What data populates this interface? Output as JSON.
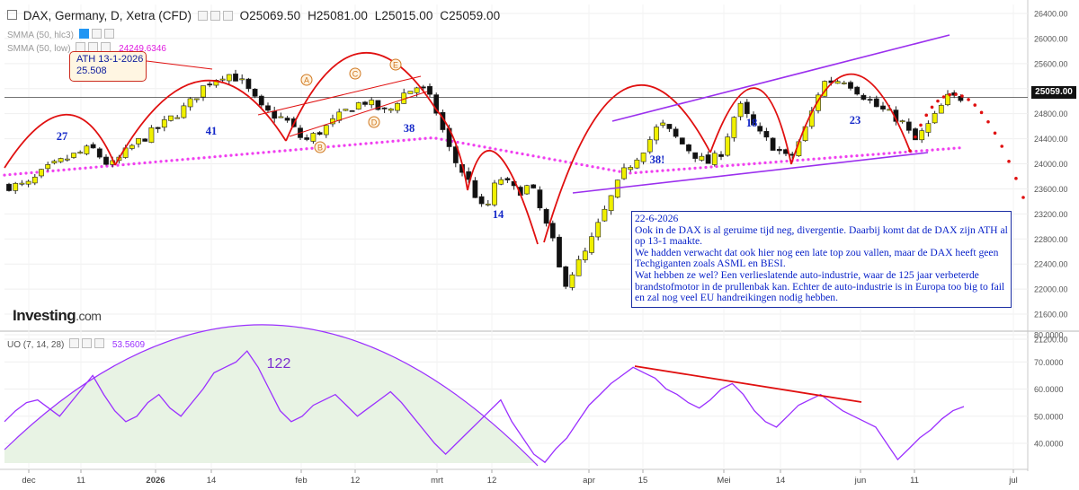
{
  "header": {
    "symbol": "DAX, Germany, D, Xetra (CFD)",
    "open": "O25069.50",
    "high": "H25081.00",
    "low": "L25015.00",
    "close": "C25059.00"
  },
  "indicators": {
    "sma1_label": "SMMA (50, hlc3)",
    "sma2_label": "SMMA (50, low)",
    "sma2_value": "24249.6346",
    "uo_label": "UO (7, 14, 28)",
    "uo_value": "53.5609"
  },
  "colors": {
    "bull_candle": "#f0f000",
    "bear_candle": "#111111",
    "arc": "#e01010",
    "channel": "#9b30ee",
    "smma": "#f040f0",
    "oscillator": "#9b30ff",
    "wave_labels": "#1428c8",
    "pattern_labels": "#d07820"
  },
  "annotations": {
    "ath_box_line1": "ATH 13-1-2026",
    "ath_box_line2": "25.508",
    "wave_27": "27",
    "wave_41": "41",
    "wave_38": "38",
    "wave_14": "14",
    "wave_38b": "38!",
    "wave_18": "18",
    "wave_23": "23",
    "uo_122": "122",
    "pat_A": "A",
    "pat_B": "B",
    "pat_C": "C",
    "pat_D": "D",
    "pat_E": "E",
    "comment": "22-6-2026\nOok in de DAX is al geruime tijd neg, divergentie. Daarbij komt dat de DAX zijn ATH  al op 13-1 maakte.\nWe hadden verwacht dat ook hier nog een late top zou vallen, maar de DAX heeft geen Techgiganten zoals ASML en BESI.\nWat hebben ze wel? Een verlieslatende  auto-industrie, waar de 125 jaar verbeterde brandstofmotor in de prullenbak kan. Echter de auto-industrie is in Europa too big to fail en zal nog  veel EU handreikingen nodig hebben.",
    "logo_main": "Investing",
    "logo_suffix": ".com"
  },
  "chart_data": [
    {
      "type": "candlestick",
      "title": "DAX, Germany, D, Xetra (CFD)",
      "ylim": [
        21200,
        26400
      ],
      "y_ticks": [
        "26400.00",
        "26000.00",
        "25600.00",
        "25200.00",
        "24800.00",
        "24400.00",
        "24000.00",
        "23600.00",
        "23200.00",
        "22800.00",
        "22400.00",
        "22000.00",
        "21600.00",
        "21200.00"
      ],
      "last_price": "25059.00",
      "x_ticks": [
        "dec",
        "11",
        "2026",
        "14",
        "feb",
        "12",
        "mrt",
        "12",
        "apr",
        "15",
        "Mei",
        "14",
        "jun",
        "11",
        "jul"
      ],
      "close_path": [
        [
          "2025-12-01",
          23650
        ],
        [
          "2025-12-05",
          23900
        ],
        [
          "2025-12-10",
          24100
        ],
        [
          "2025-12-15",
          24250
        ],
        [
          "2025-12-19",
          23950
        ],
        [
          "2025-12-24",
          24300
        ],
        [
          "2025-12-30",
          24600
        ],
        [
          "2026-01-05",
          24950
        ],
        [
          "2026-01-09",
          25300
        ],
        [
          "2026-01-13",
          25450
        ],
        [
          "2026-01-16",
          25350
        ],
        [
          "2026-01-21",
          24850
        ],
        [
          "2026-01-26",
          24700
        ],
        [
          "2026-01-30",
          24350
        ],
        [
          "2026-02-04",
          24600
        ],
        [
          "2026-02-09",
          24900
        ],
        [
          "2026-02-12",
          25000
        ],
        [
          "2026-02-17",
          24800
        ],
        [
          "2026-02-20",
          25100
        ],
        [
          "2026-02-24",
          25250
        ],
        [
          "2026-02-27",
          24950
        ],
        [
          "2026-03-03",
          24100
        ],
        [
          "2026-03-06",
          23800
        ],
        [
          "2026-03-10",
          23200
        ],
        [
          "2026-03-13",
          23800
        ],
        [
          "2026-03-17",
          23550
        ],
        [
          "2026-03-20",
          23650
        ],
        [
          "2026-03-25",
          22700
        ],
        [
          "2026-03-27",
          22050
        ],
        [
          "2026-04-01",
          22600
        ],
        [
          "2026-04-06",
          23400
        ],
        [
          "2026-04-09",
          23850
        ],
        [
          "2026-04-14",
          24300
        ],
        [
          "2026-04-17",
          24650
        ],
        [
          "2026-04-22",
          24300
        ],
        [
          "2026-04-27",
          24000
        ],
        [
          "2026-04-30",
          24150
        ],
        [
          "2026-05-04",
          24950
        ],
        [
          "2026-05-08",
          24500
        ],
        [
          "2026-05-12",
          24250
        ],
        [
          "2026-05-15",
          24050
        ],
        [
          "2026-05-19",
          24650
        ],
        [
          "2026-05-22",
          25300
        ],
        [
          "2026-05-27",
          25350
        ],
        [
          "2026-05-30",
          25150
        ],
        [
          "2026-06-03",
          24900
        ],
        [
          "2026-06-08",
          24700
        ],
        [
          "2026-06-11",
          24350
        ],
        [
          "2026-06-15",
          24700
        ],
        [
          "2026-06-18",
          25050
        ],
        [
          "2026-06-22",
          25059
        ]
      ]
    },
    {
      "type": "line",
      "title": "UO (7, 14, 28)",
      "ylim": [
        30,
        80
      ],
      "y_ticks": [
        "80.0000",
        "70.0000",
        "60.0000",
        "50.0000",
        "40.0000"
      ],
      "last_value": "53.5609",
      "values": [
        48,
        52,
        55,
        56,
        53,
        50,
        55,
        60,
        65,
        58,
        52,
        48,
        50,
        55,
        58,
        53,
        50,
        55,
        60,
        66,
        68,
        70,
        74,
        68,
        60,
        52,
        48,
        50,
        54,
        56,
        58,
        54,
        50,
        53,
        56,
        59,
        55,
        50,
        45,
        40,
        36,
        40,
        44,
        48,
        52,
        56,
        48,
        42,
        36,
        33,
        38,
        42,
        48,
        54,
        58,
        62,
        65,
        68,
        66,
        64,
        60,
        58,
        55,
        53,
        56,
        60,
        62,
        58,
        52,
        48,
        46,
        50,
        54,
        56,
        58,
        55,
        52,
        50,
        48,
        46,
        40,
        34,
        38,
        42,
        45,
        49,
        52,
        53.56
      ]
    }
  ]
}
